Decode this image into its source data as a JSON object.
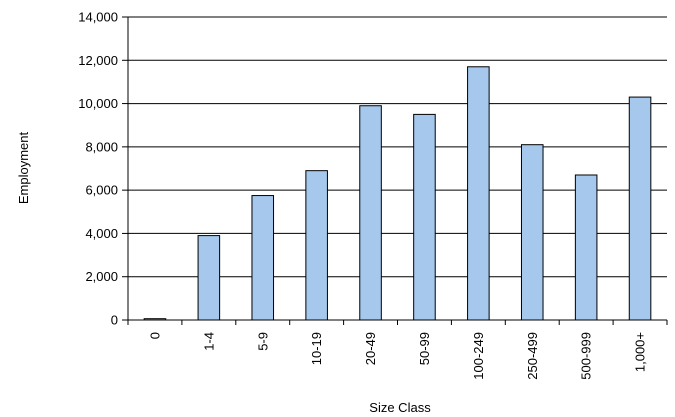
{
  "chart_data": {
    "type": "bar",
    "title": "",
    "xlabel": "Size Class",
    "ylabel": "Employment",
    "categories": [
      "0",
      "1-4",
      "5-9",
      "10-19",
      "20-49",
      "50-99",
      "100-249",
      "250-499",
      "500-999",
      "1,000+"
    ],
    "values": [
      60,
      3900,
      5750,
      6900,
      9900,
      9500,
      11700,
      8100,
      6700,
      10300
    ],
    "ylim": [
      0,
      14000
    ],
    "y_ticks": [
      0,
      2000,
      4000,
      6000,
      8000,
      10000,
      12000,
      14000
    ],
    "y_tick_labels": [
      "0",
      "2,000",
      "4,000",
      "6,000",
      "8,000",
      "10,000",
      "12,000",
      "14,000"
    ],
    "grid": true,
    "legend": "none",
    "colors": {
      "bar_fill": "#a6c8ec",
      "bar_stroke": "#000000",
      "gridline": "#000000",
      "axis": "#000000",
      "text": "#000000"
    }
  }
}
